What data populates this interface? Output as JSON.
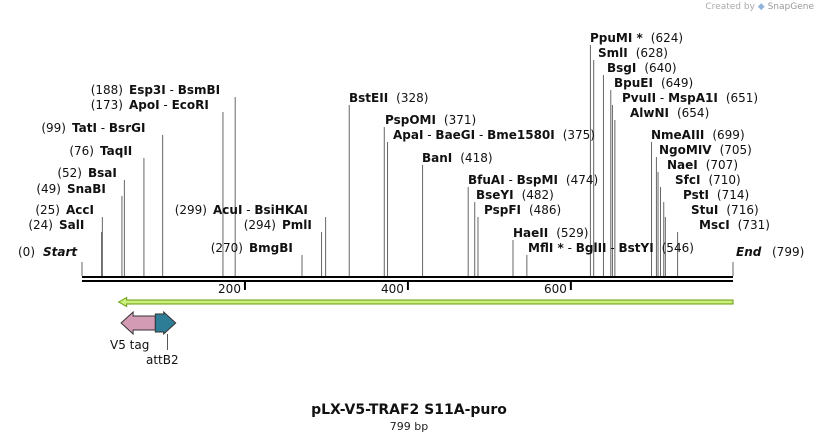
{
  "credit": {
    "prefix": "Created by",
    "brand": "SnapGene"
  },
  "title": "pLX-V5-TRAF2 S11A-puro",
  "subtitle": "799 bp",
  "ends": {
    "start_pos": "(0)",
    "start_label": "Start",
    "end_label": "End",
    "end_pos": "(799)"
  },
  "ruler": {
    "total_bp": 799,
    "ticks": [
      "200",
      "400",
      "600"
    ]
  },
  "colors": {
    "backbone": "#000000",
    "orf_fill": "#c8f07a",
    "orf_edge": "#6a9a10",
    "v5": "#d49bb4",
    "attb2": "#2e7d96"
  },
  "features": [
    {
      "name": "V5 tag",
      "color": "#d49bb4",
      "start": 48,
      "end": 90,
      "direction": "reverse"
    },
    {
      "name": "attB2",
      "color": "#2e7d96",
      "start": 90,
      "end": 115,
      "direction": "forward"
    }
  ],
  "orf": {
    "start": 45,
    "end": 799,
    "direction": "reverse"
  },
  "sites": [
    {
      "text": "(24)",
      "site": 24,
      "parts": [
        {
          "t": "SalI"
        }
      ]
    },
    {
      "text": "(25)",
      "site": 25,
      "parts": [
        {
          "t": "AccI"
        }
      ]
    },
    {
      "text": "(49)",
      "site": 49,
      "parts": [
        {
          "t": "SnaBI"
        }
      ]
    },
    {
      "text": "(52)",
      "site": 52,
      "parts": [
        {
          "t": "BsaI"
        }
      ]
    },
    {
      "text": "(76)",
      "site": 76,
      "parts": [
        {
          "t": "TaqII"
        }
      ]
    },
    {
      "text": "(99)",
      "site": 99,
      "parts": [
        {
          "t": "TatI"
        },
        {
          "t": " - ",
          "sep": true
        },
        {
          "t": "BsrGI"
        }
      ]
    },
    {
      "text": "(173)",
      "site": 173,
      "parts": [
        {
          "t": "ApoI"
        },
        {
          "t": " - ",
          "sep": true
        },
        {
          "t": "EcoRI"
        }
      ]
    },
    {
      "text": "(188)",
      "site": 188,
      "parts": [
        {
          "t": "Esp3I"
        },
        {
          "t": " - ",
          "sep": true
        },
        {
          "t": "BsmBI"
        }
      ]
    },
    {
      "text": "(270)",
      "site": 270,
      "parts": [
        {
          "t": "BmgBI"
        }
      ]
    },
    {
      "text": "(294)",
      "site": 294,
      "parts": [
        {
          "t": "PmlI"
        }
      ]
    },
    {
      "text": "(299)",
      "site": 299,
      "parts": [
        {
          "t": "AcuI"
        },
        {
          "t": " - ",
          "sep": true
        },
        {
          "t": "BsiHKAI"
        }
      ]
    },
    {
      "text": "(328)",
      "site": 328,
      "parts": [
        {
          "t": "BstEII"
        }
      ]
    },
    {
      "text": "(371)",
      "site": 371,
      "parts": [
        {
          "t": "PspOMI"
        }
      ]
    },
    {
      "text": "(375)",
      "site": 375,
      "parts": [
        {
          "t": "ApaI"
        },
        {
          "t": " - ",
          "sep": true
        },
        {
          "t": "BaeGI"
        },
        {
          "t": " - ",
          "sep": true
        },
        {
          "t": "Bme1580I"
        }
      ]
    },
    {
      "text": "(418)",
      "site": 418,
      "parts": [
        {
          "t": "BanI"
        }
      ]
    },
    {
      "text": "(474)",
      "site": 474,
      "parts": [
        {
          "t": "BfuAI"
        },
        {
          "t": " - ",
          "sep": true
        },
        {
          "t": "BspMI"
        }
      ]
    },
    {
      "text": "(482)",
      "site": 482,
      "parts": [
        {
          "t": "BseYI"
        }
      ]
    },
    {
      "text": "(486)",
      "site": 486,
      "parts": [
        {
          "t": "PspFI"
        }
      ]
    },
    {
      "text": "(529)",
      "site": 529,
      "parts": [
        {
          "t": "HaeII"
        }
      ]
    },
    {
      "text": "(546)",
      "site": 546,
      "parts": [
        {
          "t": "MflI *"
        },
        {
          "t": " - ",
          "sep": true
        },
        {
          "t": "BglII"
        },
        {
          "t": " - ",
          "sep": true
        },
        {
          "t": "BstYI"
        }
      ]
    },
    {
      "text": "(624)",
      "site": 624,
      "parts": [
        {
          "t": "PpuMI *"
        }
      ]
    },
    {
      "text": "(628)",
      "site": 628,
      "parts": [
        {
          "t": "SmlI"
        }
      ]
    },
    {
      "text": "(640)",
      "site": 640,
      "parts": [
        {
          "t": "BsgI"
        }
      ]
    },
    {
      "text": "(649)",
      "site": 649,
      "parts": [
        {
          "t": "BpuEI"
        }
      ]
    },
    {
      "text": "(651)",
      "site": 651,
      "parts": [
        {
          "t": "PvuII"
        },
        {
          "t": " - ",
          "sep": true
        },
        {
          "t": "MspA1I"
        }
      ]
    },
    {
      "text": "(654)",
      "site": 654,
      "parts": [
        {
          "t": "AlwNI"
        }
      ]
    },
    {
      "text": "(699)",
      "site": 699,
      "parts": [
        {
          "t": "NmeAIII"
        }
      ]
    },
    {
      "text": "(705)",
      "site": 705,
      "parts": [
        {
          "t": "NgoMIV"
        }
      ]
    },
    {
      "text": "(707)",
      "site": 707,
      "parts": [
        {
          "t": "NaeI"
        }
      ]
    },
    {
      "text": "(710)",
      "site": 710,
      "parts": [
        {
          "t": "SfcI"
        }
      ]
    },
    {
      "text": "(714)",
      "site": 714,
      "parts": [
        {
          "t": "PstI"
        }
      ]
    },
    {
      "text": "(716)",
      "site": 716,
      "parts": [
        {
          "t": "StuI"
        }
      ]
    },
    {
      "text": "(731)",
      "site": 731,
      "parts": [
        {
          "t": "MscI"
        }
      ]
    }
  ]
}
